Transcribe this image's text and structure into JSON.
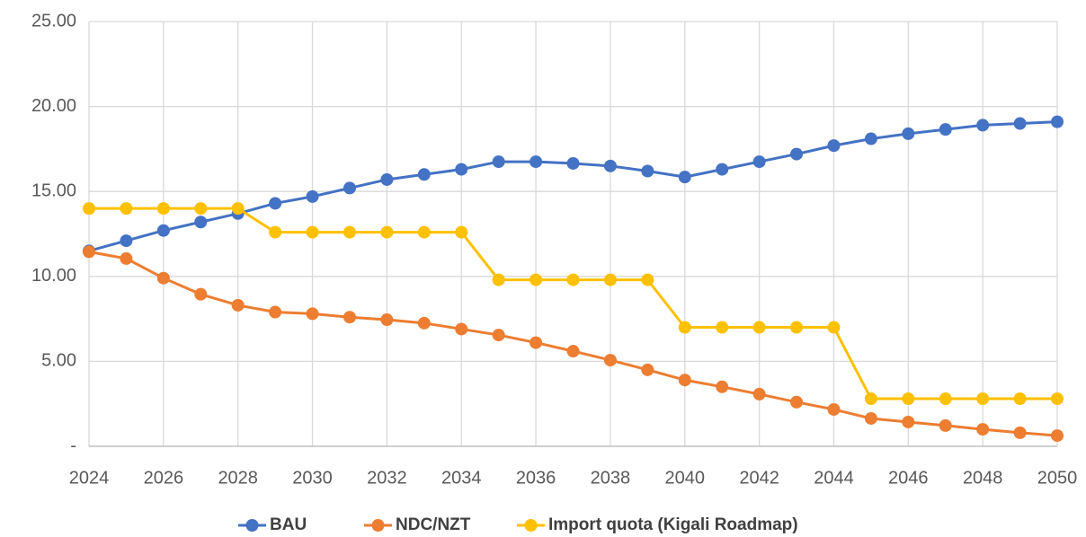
{
  "chart_data": {
    "type": "line",
    "x": [
      2024,
      2025,
      2026,
      2027,
      2028,
      2029,
      2030,
      2031,
      2032,
      2033,
      2034,
      2035,
      2036,
      2037,
      2038,
      2039,
      2040,
      2041,
      2042,
      2043,
      2044,
      2045,
      2046,
      2047,
      2048,
      2049,
      2050
    ],
    "series": [
      {
        "name": "BAU",
        "color": "#4472c4",
        "values": [
          11.5,
          12.1,
          12.7,
          13.2,
          13.7,
          14.3,
          14.7,
          15.2,
          15.7,
          16.0,
          16.3,
          16.75,
          16.75,
          16.65,
          16.5,
          16.2,
          15.85,
          16.3,
          16.75,
          17.2,
          17.7,
          18.1,
          18.4,
          18.65,
          18.9,
          19.0,
          19.1
        ]
      },
      {
        "name": "NDC/NZT",
        "color": "#ed7d31",
        "values": [
          11.45,
          11.05,
          9.9,
          8.95,
          8.3,
          7.9,
          7.8,
          7.6,
          7.45,
          7.25,
          6.9,
          6.55,
          6.1,
          5.6,
          5.07,
          4.5,
          3.9,
          3.5,
          3.07,
          2.6,
          2.17,
          1.64,
          1.43,
          1.22,
          1.0,
          0.8,
          0.63
        ]
      },
      {
        "name": "Import quota (Kigali Roadmap)",
        "color": "#ffc000",
        "values": [
          14.0,
          14.0,
          14.0,
          14.0,
          14.0,
          12.6,
          12.6,
          12.6,
          12.6,
          12.6,
          12.6,
          9.8,
          9.8,
          9.8,
          9.8,
          9.8,
          7.0,
          7.0,
          7.0,
          7.0,
          7.0,
          2.8,
          2.8,
          2.8,
          2.8,
          2.8,
          2.8
        ]
      }
    ],
    "xlim": [
      2024,
      2050
    ],
    "xticks": [
      2024,
      2026,
      2028,
      2030,
      2032,
      2034,
      2036,
      2038,
      2040,
      2042,
      2044,
      2046,
      2048,
      2050
    ],
    "ylim": [
      0,
      25
    ],
    "yticks": [
      {
        "value": 0,
        "label": "-"
      },
      {
        "value": 5,
        "label": "5.00"
      },
      {
        "value": 10,
        "label": "10.00"
      },
      {
        "value": 15,
        "label": "15.00"
      },
      {
        "value": 20,
        "label": "20.00"
      },
      {
        "value": 25,
        "label": "25.00"
      }
    ],
    "grid": true,
    "legend": "bottom"
  }
}
